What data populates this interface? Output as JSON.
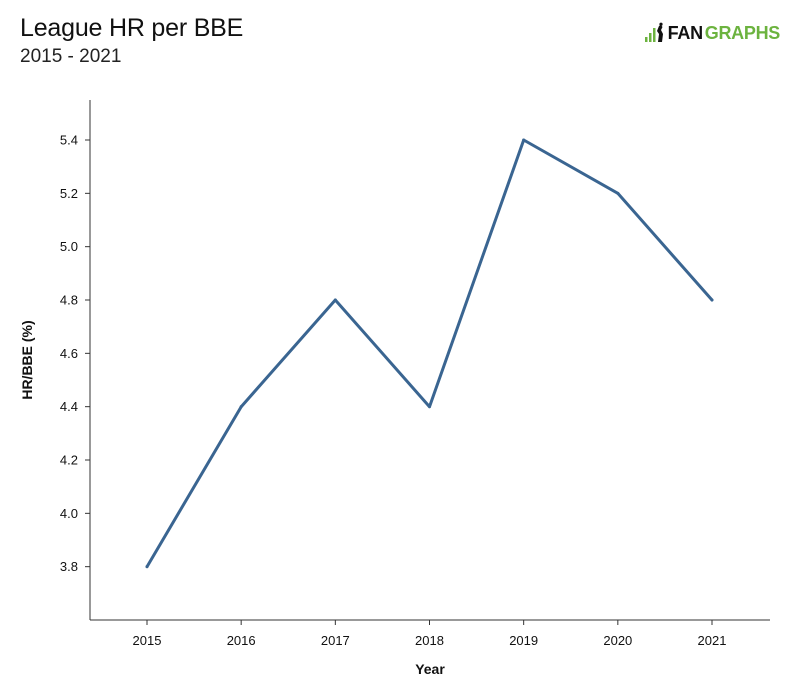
{
  "header": {
    "title": "League HR per BBE",
    "subtitle": "2015 - 2021"
  },
  "brand": {
    "name_part1": "FAN",
    "name_part2": "GRAPHS",
    "accent_color": "#6cb33f",
    "icon": "fangraphs-logo-icon"
  },
  "chart_data": {
    "type": "line",
    "title": "League HR per BBE",
    "subtitle": "2015 - 2021",
    "xlabel": "Year",
    "ylabel": "HR/BBE (%)",
    "x": [
      "2015",
      "2016",
      "2017",
      "2018",
      "2019",
      "2020",
      "2021"
    ],
    "series": [
      {
        "values": [
          3.8,
          4.4,
          4.8,
          4.4,
          5.4,
          5.2,
          4.8
        ],
        "color": "#3a6591"
      }
    ],
    "ylim": [
      3.6,
      5.55
    ],
    "yticks": [
      3.8,
      4.0,
      4.2,
      4.4,
      4.6,
      4.8,
      5.0,
      5.2,
      5.4
    ],
    "ytick_labels": [
      "3.8",
      "4.0",
      "4.2",
      "4.4",
      "4.6",
      "4.8",
      "5.0",
      "5.2",
      "5.4"
    ],
    "grid": false,
    "legend": "none"
  }
}
